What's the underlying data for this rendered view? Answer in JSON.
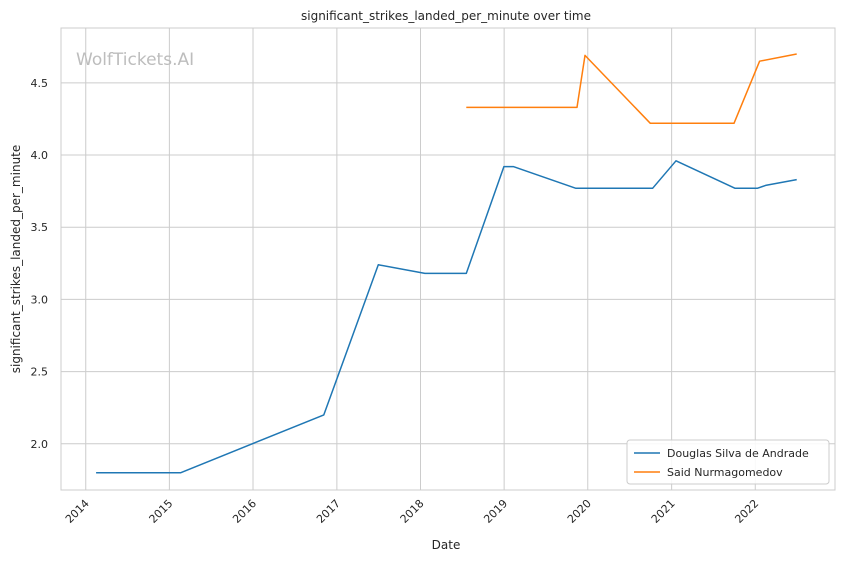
{
  "chart_data": {
    "type": "line",
    "title": "significant_strikes_landed_per_minute over time",
    "xlabel": "Date",
    "ylabel": "significant_strikes_landed_per_minute",
    "watermark": "WolfTickets.AI",
    "x_ticks": [
      "2014",
      "2015",
      "2016",
      "2017",
      "2018",
      "2019",
      "2020",
      "2021",
      "2022"
    ],
    "y_ticks": [
      "2.0",
      "2.5",
      "3.0",
      "3.5",
      "4.0",
      "4.5"
    ],
    "xlim": [
      "2013-09-15",
      "2022-12-15"
    ],
    "ylim": [
      1.68,
      4.88
    ],
    "grid": true,
    "legend_position": "lower-right",
    "series": [
      {
        "name": "Douglas Silva de Andrade",
        "color": "#1f77b4",
        "points": [
          [
            "2014-02-15",
            1.8
          ],
          [
            "2015-02-20",
            1.8
          ],
          [
            "2016-11-05",
            2.2
          ],
          [
            "2017-07-01",
            3.24
          ],
          [
            "2018-01-20",
            3.18
          ],
          [
            "2018-07-20",
            3.18
          ],
          [
            "2018-12-31",
            3.92
          ],
          [
            "2019-02-10",
            3.92
          ],
          [
            "2019-11-10",
            3.77
          ],
          [
            "2020-10-10",
            3.77
          ],
          [
            "2021-01-20",
            3.96
          ],
          [
            "2021-10-05",
            3.77
          ],
          [
            "2022-01-10",
            3.77
          ],
          [
            "2022-02-15",
            3.79
          ],
          [
            "2022-07-01",
            3.83
          ]
        ]
      },
      {
        "name": "Said Nurmagomedov",
        "color": "#ff7f0e",
        "points": [
          [
            "2018-07-20",
            4.33
          ],
          [
            "2019-11-15",
            4.33
          ],
          [
            "2019-12-20",
            4.69
          ],
          [
            "2020-09-30",
            4.22
          ],
          [
            "2021-09-30",
            4.22
          ],
          [
            "2022-01-20",
            4.65
          ],
          [
            "2022-07-01",
            4.7
          ]
        ]
      }
    ]
  }
}
